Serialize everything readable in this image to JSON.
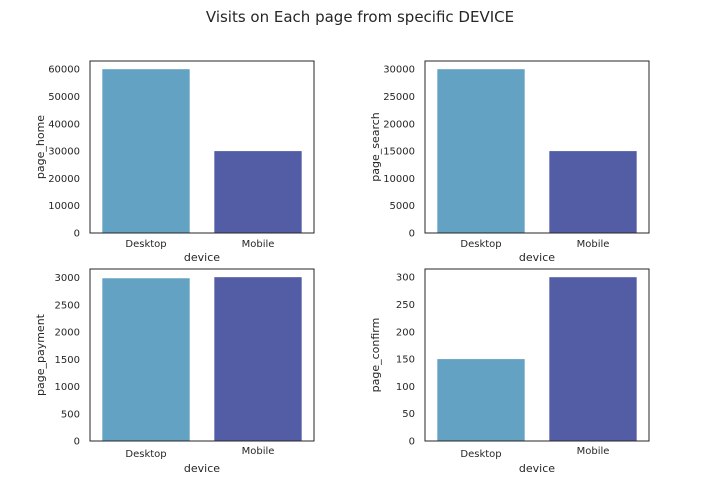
{
  "figure": {
    "title": "Visits on Each page from specific DEVICE"
  },
  "chart_data": [
    {
      "type": "bar",
      "categories": [
        "Desktop",
        "Mobile"
      ],
      "values": [
        60000,
        30000
      ],
      "xlabel": "device",
      "ylabel": "page_home",
      "ylim": [
        0,
        63000
      ],
      "yticks": [
        "0",
        "10000",
        "20000",
        "30000",
        "40000",
        "50000",
        "60000"
      ],
      "ytick_values": [
        0,
        10000,
        20000,
        30000,
        40000,
        50000,
        60000
      ],
      "colors": [
        "#63a2c3",
        "#535da6"
      ],
      "grid": false
    },
    {
      "type": "bar",
      "categories": [
        "Desktop",
        "Mobile"
      ],
      "values": [
        30000,
        15000
      ],
      "xlabel": "device",
      "ylabel": "page_search",
      "ylim": [
        0,
        31500
      ],
      "yticks": [
        "0",
        "5000",
        "10000",
        "15000",
        "20000",
        "25000",
        "30000"
      ],
      "ytick_values": [
        0,
        5000,
        10000,
        15000,
        20000,
        25000,
        30000
      ],
      "colors": [
        "#63a2c3",
        "#535da6"
      ],
      "grid": false
    },
    {
      "type": "bar",
      "categories": [
        "Desktop",
        "Mobile"
      ],
      "values": [
        2990,
        3010
      ],
      "xlabel": "device",
      "ylabel": "page_payment",
      "ylim": [
        0,
        3160
      ],
      "yticks": [
        "0",
        "500",
        "1000",
        "1500",
        "2000",
        "2500",
        "3000"
      ],
      "ytick_values": [
        0,
        500,
        1000,
        1500,
        2000,
        2500,
        3000
      ],
      "colors": [
        "#63a2c3",
        "#535da6"
      ],
      "grid": false
    },
    {
      "type": "bar",
      "categories": [
        "Desktop",
        "Mobile"
      ],
      "values": [
        150,
        300
      ],
      "xlabel": "device",
      "ylabel": "page_confirm",
      "ylim": [
        0,
        315
      ],
      "yticks": [
        "0",
        "50",
        "100",
        "150",
        "200",
        "250",
        "300"
      ],
      "ytick_values": [
        0,
        50,
        100,
        150,
        200,
        250,
        300
      ],
      "colors": [
        "#63a2c3",
        "#535da6"
      ],
      "grid": false
    }
  ]
}
